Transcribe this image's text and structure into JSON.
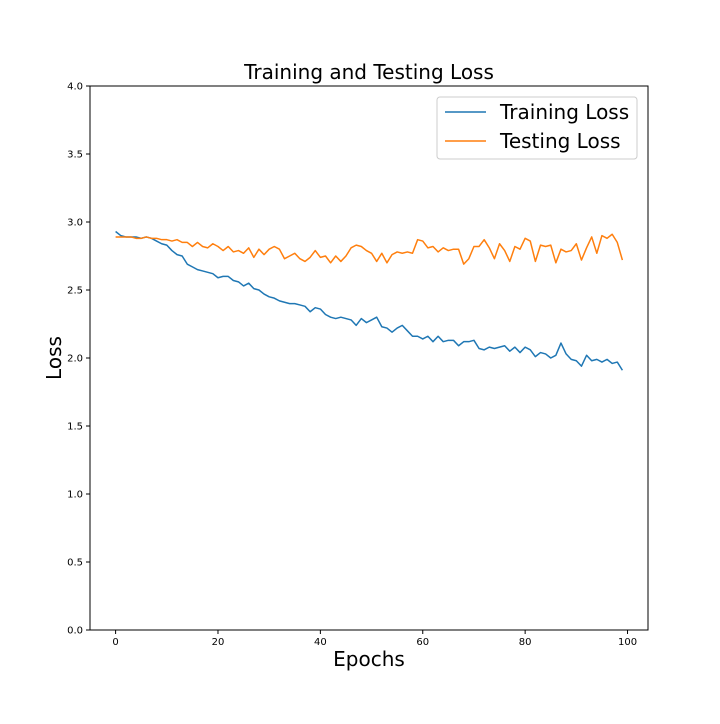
{
  "chart_data": {
    "type": "line",
    "title": "Training and Testing Loss",
    "xlabel": "Epochs",
    "ylabel": "Loss",
    "xlim": [
      -5,
      104
    ],
    "ylim": [
      0,
      4
    ],
    "xticks": [
      0,
      20,
      40,
      60,
      80,
      100
    ],
    "xtick_labels": [
      "0",
      "20",
      "40",
      "60",
      "80",
      "100"
    ],
    "yticks": [
      0,
      0.5,
      1,
      1.5,
      2,
      2.5,
      3,
      3.5,
      4
    ],
    "ytick_labels": [
      "0.0",
      "0.5",
      "1.0",
      "1.5",
      "2.0",
      "2.5",
      "3.0",
      "3.5",
      "4.0"
    ],
    "grid": false,
    "legend_position": "top-right",
    "series": [
      {
        "name": "Training Loss",
        "color": "#1f77b4",
        "x": [
          0,
          1,
          2,
          3,
          4,
          5,
          6,
          7,
          8,
          9,
          10,
          11,
          12,
          13,
          14,
          15,
          16,
          17,
          18,
          19,
          20,
          21,
          22,
          23,
          24,
          25,
          26,
          27,
          28,
          29,
          30,
          31,
          32,
          33,
          34,
          35,
          36,
          37,
          38,
          39,
          40,
          41,
          42,
          43,
          44,
          45,
          46,
          47,
          48,
          49,
          50,
          51,
          52,
          53,
          54,
          55,
          56,
          57,
          58,
          59,
          60,
          61,
          62,
          63,
          64,
          65,
          66,
          67,
          68,
          69,
          70,
          71,
          72,
          73,
          74,
          75,
          76,
          77,
          78,
          79,
          80,
          81,
          82,
          83,
          84,
          85,
          86,
          87,
          88,
          89,
          90,
          91,
          92,
          93,
          94,
          95,
          96,
          97,
          98,
          99
        ],
        "values": [
          2.93,
          2.9,
          2.89,
          2.89,
          2.89,
          2.88,
          2.89,
          2.88,
          2.86,
          2.84,
          2.83,
          2.79,
          2.76,
          2.75,
          2.69,
          2.67,
          2.65,
          2.64,
          2.63,
          2.62,
          2.59,
          2.6,
          2.6,
          2.57,
          2.56,
          2.53,
          2.55,
          2.51,
          2.5,
          2.47,
          2.45,
          2.44,
          2.42,
          2.41,
          2.4,
          2.4,
          2.39,
          2.38,
          2.34,
          2.37,
          2.36,
          2.32,
          2.3,
          2.29,
          2.3,
          2.29,
          2.28,
          2.24,
          2.29,
          2.26,
          2.28,
          2.3,
          2.23,
          2.22,
          2.19,
          2.22,
          2.24,
          2.2,
          2.16,
          2.16,
          2.14,
          2.16,
          2.12,
          2.16,
          2.12,
          2.13,
          2.13,
          2.09,
          2.12,
          2.12,
          2.13,
          2.07,
          2.06,
          2.08,
          2.07,
          2.08,
          2.09,
          2.05,
          2.08,
          2.04,
          2.08,
          2.06,
          2.01,
          2.04,
          2.03,
          2.0,
          2.02,
          2.11,
          2.03,
          1.99,
          1.98,
          1.94,
          2.02,
          1.98,
          1.99,
          1.97,
          1.99,
          1.96,
          1.97,
          1.91
        ]
      },
      {
        "name": "Testing Loss",
        "color": "#ff7f0e",
        "x": [
          0,
          1,
          2,
          3,
          4,
          5,
          6,
          7,
          8,
          9,
          10,
          11,
          12,
          13,
          14,
          15,
          16,
          17,
          18,
          19,
          20,
          21,
          22,
          23,
          24,
          25,
          26,
          27,
          28,
          29,
          30,
          31,
          32,
          33,
          34,
          35,
          36,
          37,
          38,
          39,
          40,
          41,
          42,
          43,
          44,
          45,
          46,
          47,
          48,
          49,
          50,
          51,
          52,
          53,
          54,
          55,
          56,
          57,
          58,
          59,
          60,
          61,
          62,
          63,
          64,
          65,
          66,
          67,
          68,
          69,
          70,
          71,
          72,
          73,
          74,
          75,
          76,
          77,
          78,
          79,
          80,
          81,
          82,
          83,
          84,
          85,
          86,
          87,
          88,
          89,
          90,
          91,
          92,
          93,
          94,
          95,
          96,
          97,
          98,
          99
        ],
        "values": [
          2.89,
          2.89,
          2.89,
          2.89,
          2.88,
          2.88,
          2.89,
          2.88,
          2.88,
          2.87,
          2.87,
          2.86,
          2.87,
          2.85,
          2.85,
          2.82,
          2.85,
          2.82,
          2.81,
          2.84,
          2.82,
          2.79,
          2.82,
          2.78,
          2.79,
          2.77,
          2.81,
          2.74,
          2.8,
          2.76,
          2.8,
          2.82,
          2.8,
          2.73,
          2.75,
          2.77,
          2.73,
          2.71,
          2.74,
          2.79,
          2.74,
          2.75,
          2.7,
          2.75,
          2.71,
          2.75,
          2.81,
          2.83,
          2.82,
          2.79,
          2.77,
          2.71,
          2.77,
          2.7,
          2.76,
          2.78,
          2.77,
          2.78,
          2.77,
          2.87,
          2.86,
          2.81,
          2.82,
          2.78,
          2.81,
          2.79,
          2.8,
          2.8,
          2.69,
          2.73,
          2.82,
          2.82,
          2.87,
          2.81,
          2.73,
          2.84,
          2.79,
          2.71,
          2.82,
          2.8,
          2.88,
          2.86,
          2.71,
          2.83,
          2.82,
          2.83,
          2.7,
          2.8,
          2.78,
          2.79,
          2.84,
          2.72,
          2.81,
          2.89,
          2.77,
          2.9,
          2.88,
          2.91,
          2.85,
          2.72
        ]
      }
    ]
  }
}
